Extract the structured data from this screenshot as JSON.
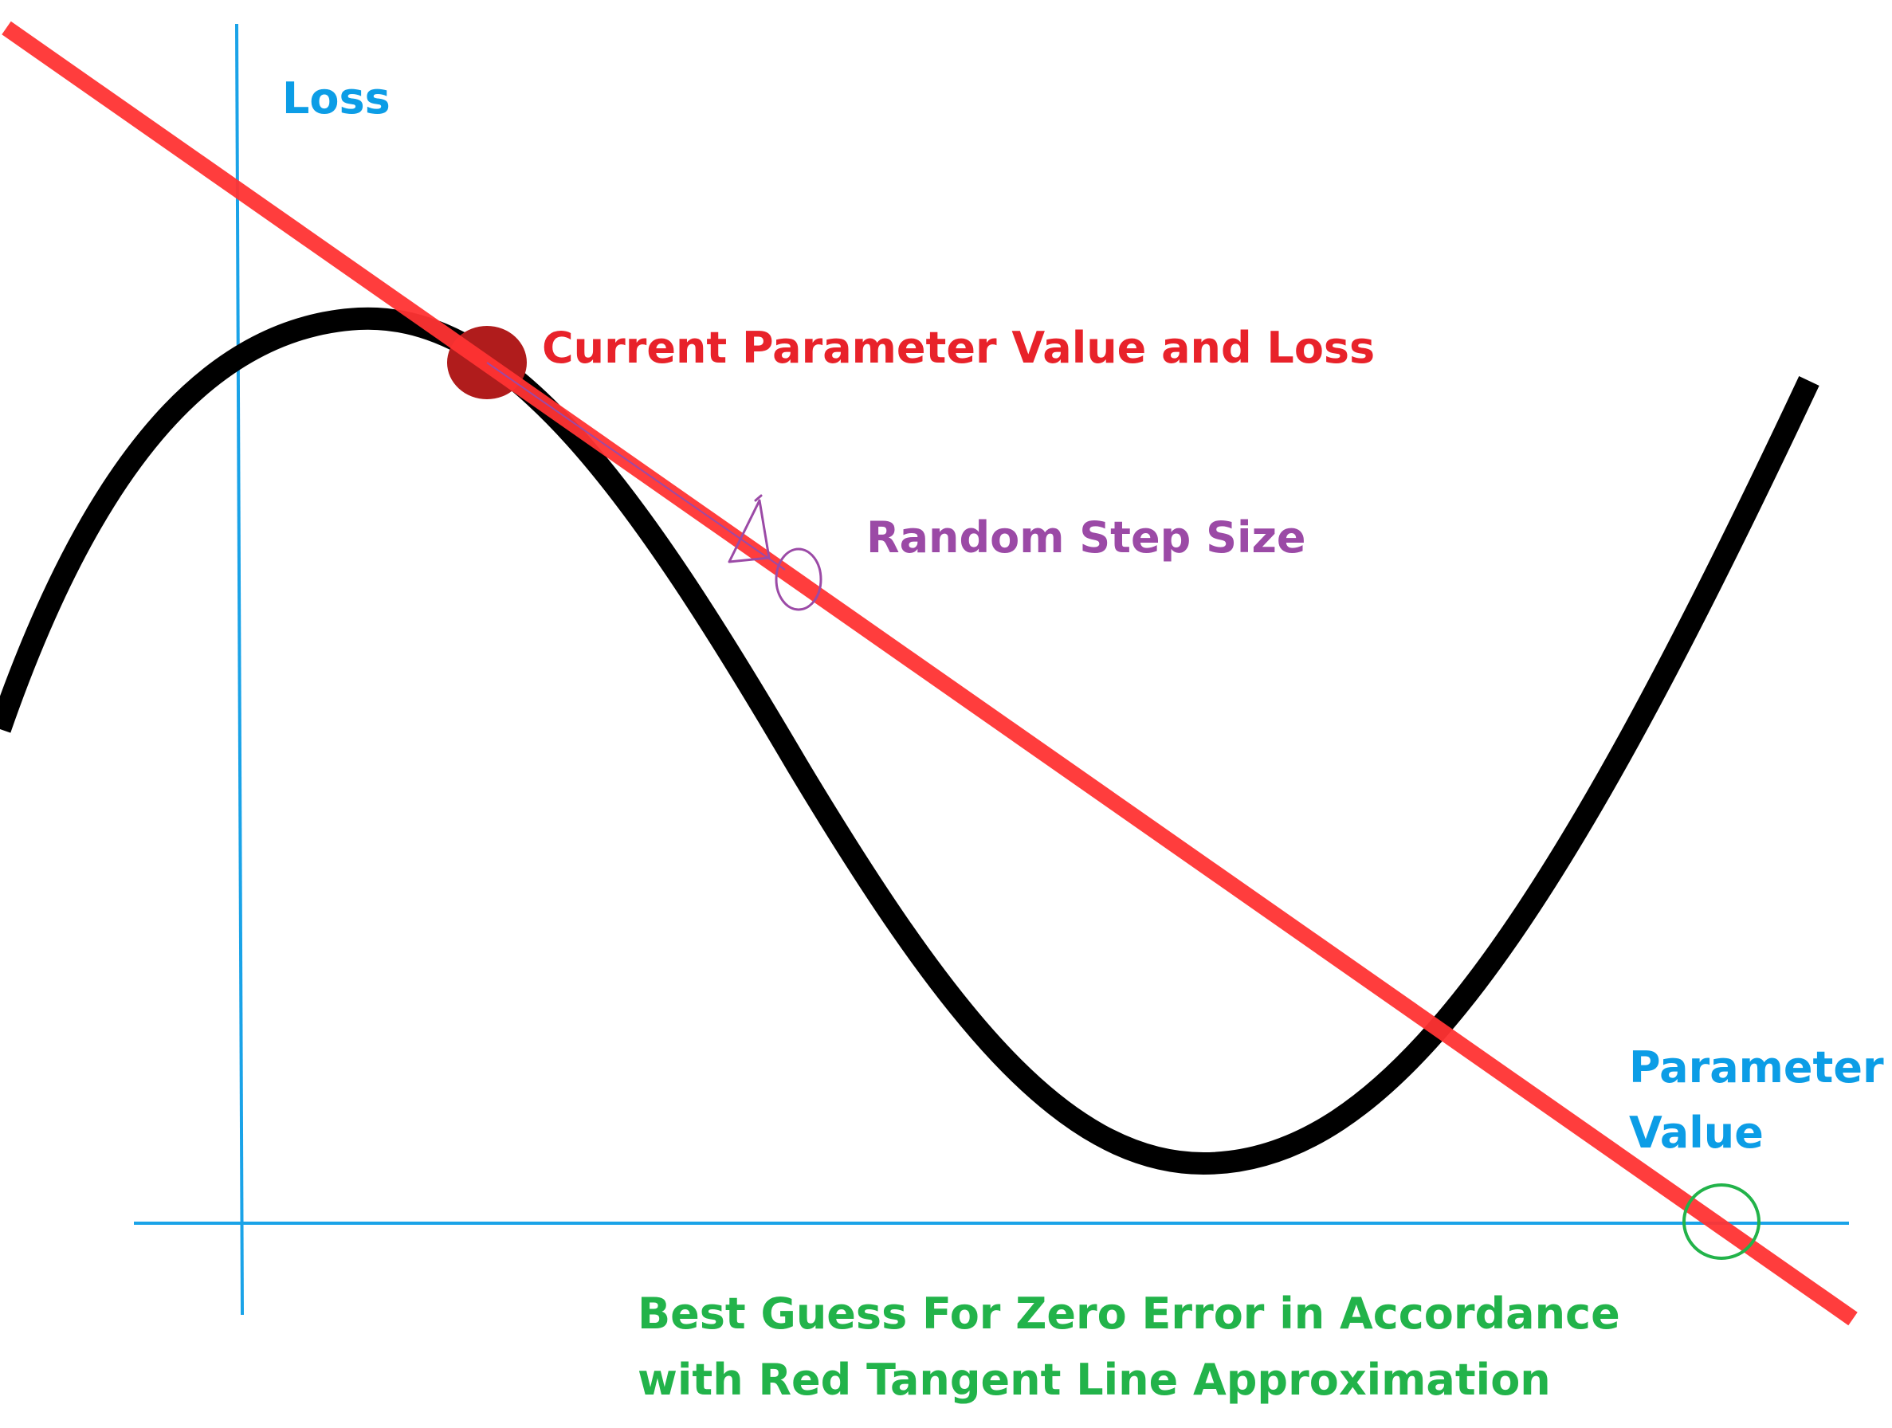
{
  "labels": {
    "y_axis": "Loss",
    "x_axis_line1": "Parameter",
    "x_axis_line2": "Value",
    "current_point": "Current Parameter Value and Loss",
    "step": "Random Step Size",
    "best_guess_line1": "Best Guess For Zero Error in Accordance",
    "best_guess_line2": "with Red Tangent Line Approximation"
  },
  "handwritten_symbol": "Δθ",
  "colors": {
    "axis": "#1aa3e8",
    "axis_label": "#0c9de6",
    "curve": "#000000",
    "tangent": "#ff3333",
    "point": "#b01c1c",
    "current_label": "#e8222a",
    "step_label": "#9b4aa6",
    "best_guess": "#22b34a"
  }
}
